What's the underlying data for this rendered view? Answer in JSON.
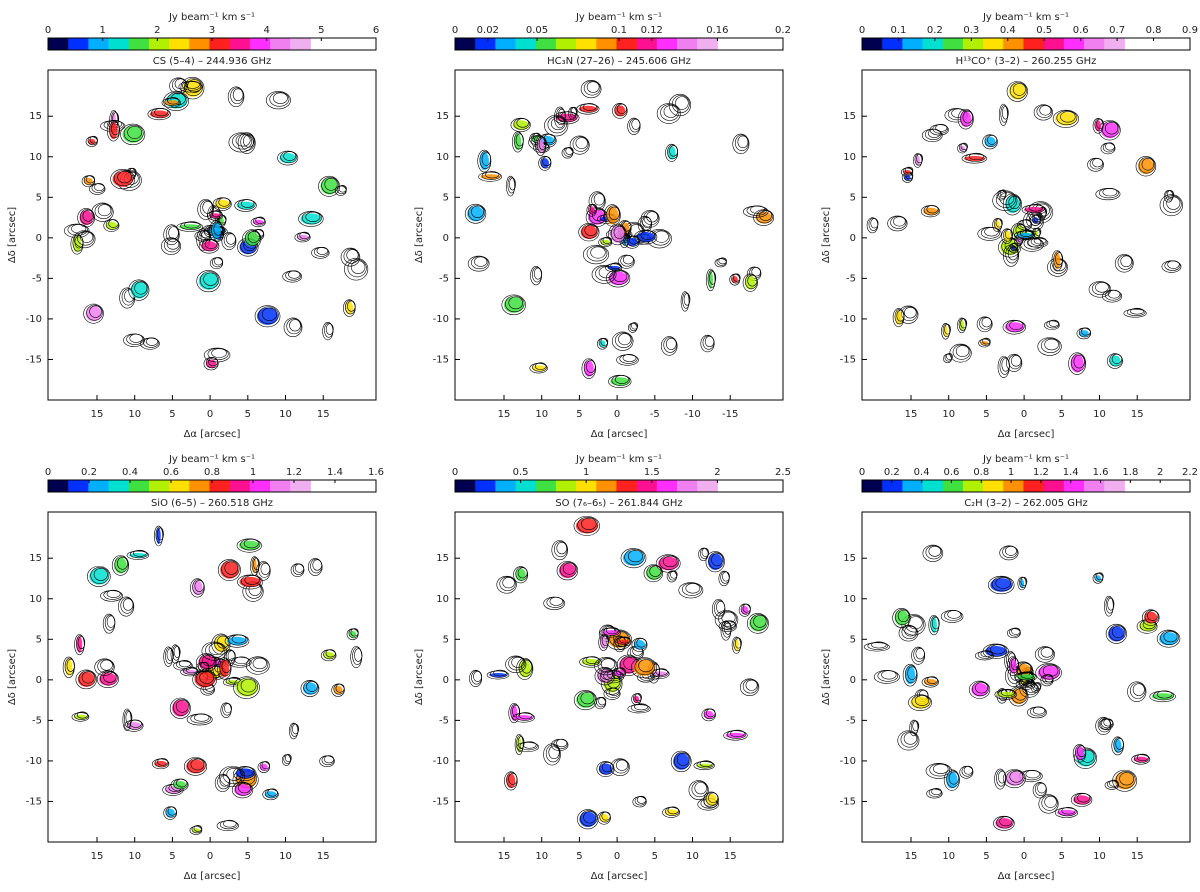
{
  "chart_data": [
    {
      "type": "map",
      "title": "CS (5–4) – 244.936 GHz",
      "colorbar_label": "Jy beam⁻¹ km s⁻¹",
      "clim": [
        0,
        6
      ],
      "cticks": [
        0,
        1,
        2,
        3,
        4,
        5,
        6
      ],
      "xlabel": "Δα [arcsec]",
      "ylabel": "Δδ [arcsec]",
      "xlim": [
        21.5,
        -22
      ],
      "ylim": [
        -20,
        20.7
      ],
      "xticks": [
        15,
        10,
        5,
        0,
        {
          "value": -5,
          "label": "5"
        },
        {
          "value": -10,
          "label": "10"
        },
        {
          "value": -15,
          "label": "15"
        }
      ],
      "yticks": [
        15,
        10,
        5,
        0,
        -5,
        -10,
        -15
      ]
    },
    {
      "type": "map",
      "title": "HC₃N (27–26) – 245.606 GHz",
      "colorbar_label": "Jy beam⁻¹ km s⁻¹",
      "clim": [
        0,
        0.2
      ],
      "cticks": [
        0,
        0.02,
        0.05,
        0.1,
        0.12,
        0.16,
        0.2
      ],
      "xlabel": "Δα [arcsec]",
      "ylabel": "Δδ [arcsec]",
      "xlim": [
        21.5,
        -22
      ],
      "ylim": [
        -20,
        20.7
      ],
      "xticks": [
        15,
        10,
        5,
        0,
        -5,
        -10,
        -15
      ],
      "yticks": [
        15,
        10,
        5,
        0,
        -5,
        -10,
        -15
      ]
    },
    {
      "type": "map",
      "title": "H¹³CO⁺ (3–2) – 260.255 GHz",
      "colorbar_label": "Jy beam⁻¹ km s⁻¹",
      "clim": [
        0,
        0.9
      ],
      "cticks": [
        0,
        0.1,
        0.2,
        0.3,
        0.4,
        0.5,
        0.6,
        0.7,
        0.8,
        0.9
      ],
      "xlabel": "Δα [arcsec]",
      "ylabel": "Δδ [arcsec]",
      "xlim": [
        21.5,
        -22
      ],
      "ylim": [
        -20,
        20.7
      ],
      "xticks": [
        15,
        10,
        5,
        0,
        {
          "value": -5,
          "label": "5"
        },
        {
          "value": -10,
          "label": "10"
        },
        {
          "value": -15,
          "label": "15"
        }
      ],
      "yticks": [
        15,
        10,
        5,
        0,
        -5,
        -10,
        -15
      ]
    },
    {
      "type": "map",
      "title": "SiO (6–5) – 260.518 GHz",
      "colorbar_label": "Jy beam⁻¹ km s⁻¹",
      "clim": [
        0,
        1.6
      ],
      "cticks": [
        0,
        0.2,
        0.4,
        0.6,
        0.8,
        1,
        1.2,
        1.4,
        1.6
      ],
      "xlabel": "Δα [arcsec]",
      "ylabel": "Δδ [arcsec]",
      "xlim": [
        21.5,
        -22
      ],
      "ylim": [
        -20,
        20.7
      ],
      "xticks": [
        15,
        10,
        5,
        0,
        {
          "value": -5,
          "label": "5"
        },
        {
          "value": -10,
          "label": "10"
        },
        {
          "value": -15,
          "label": "15"
        }
      ],
      "yticks": [
        15,
        10,
        5,
        0,
        -5,
        -10,
        -15
      ]
    },
    {
      "type": "map",
      "title": "SO (7₆–6₅) – 261.844 GHz",
      "colorbar_label": "Jy beam⁻¹ km s⁻¹",
      "clim": [
        0,
        2.5
      ],
      "cticks": [
        0,
        0.5,
        1,
        1.5,
        2,
        2.5
      ],
      "xlabel": "Δα [arcsec]",
      "ylabel": "Δδ [arcsec]",
      "xlim": [
        21.5,
        -22
      ],
      "ylim": [
        -20,
        20.7
      ],
      "xticks": [
        15,
        10,
        5,
        0,
        {
          "value": -5,
          "label": "5"
        },
        {
          "value": -10,
          "label": "10"
        },
        {
          "value": -15,
          "label": "15"
        }
      ],
      "yticks": [
        15,
        10,
        5,
        0,
        -5,
        -10,
        -15
      ]
    },
    {
      "type": "map",
      "title": "C₂H (3–2) – 262.005 GHz",
      "colorbar_label": "Jy beam⁻¹ km s⁻¹",
      "clim": [
        0,
        2.2
      ],
      "cticks": [
        0,
        0.2,
        0.4,
        0.6,
        0.8,
        1,
        1.2,
        1.4,
        1.6,
        1.8,
        2,
        2.2
      ],
      "xlabel": "Δα [arcsec]",
      "ylabel": "Δδ [arcsec]",
      "xlim": [
        21.5,
        -22
      ],
      "ylim": [
        -20,
        20.7
      ],
      "xticks": [
        15,
        10,
        5,
        0,
        {
          "value": -5,
          "label": "5"
        },
        {
          "value": -10,
          "label": "10"
        },
        {
          "value": -15,
          "label": "15"
        }
      ],
      "yticks": [
        15,
        10,
        5,
        0,
        -5,
        -10,
        -15
      ]
    }
  ],
  "colormap": [
    "#000050",
    "#0030ff",
    "#00b0ff",
    "#00e0d0",
    "#40e040",
    "#b0f000",
    "#ffe000",
    "#ff9000",
    "#ff2020",
    "#ff1090",
    "#ff30ff",
    "#f080f0",
    "#f0b0f0"
  ]
}
